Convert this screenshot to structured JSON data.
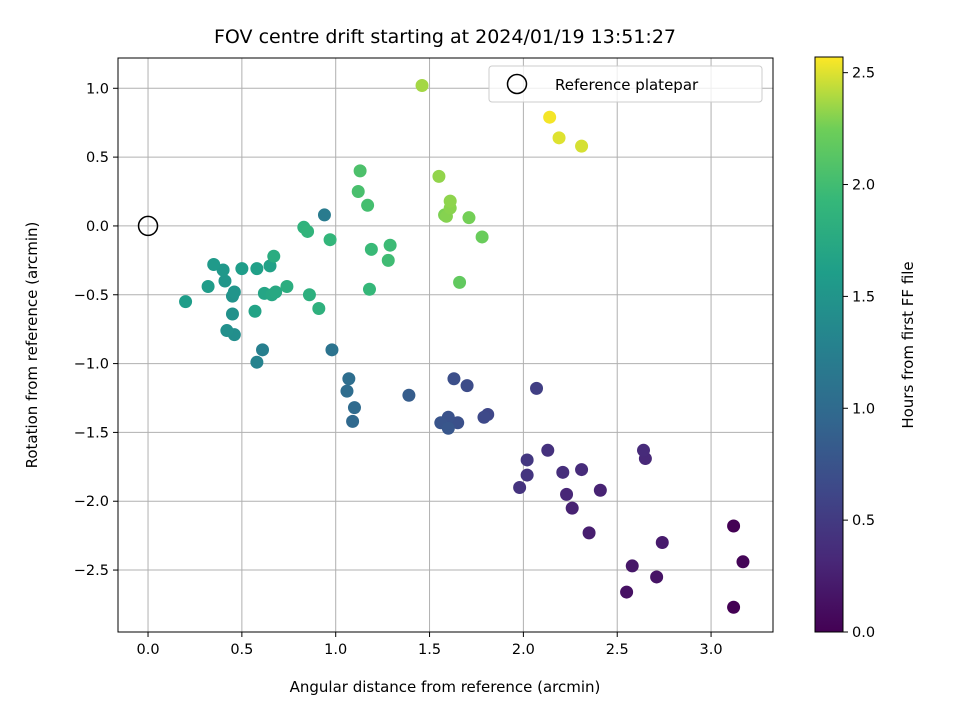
{
  "chart_data": {
    "type": "scatter",
    "title": "FOV centre drift starting at 2024/01/19 13:51:27",
    "xlabel": "Angular distance from reference (arcmin)",
    "ylabel": "Rotation from reference (arcmin)",
    "xlim": [
      -0.16,
      3.33
    ],
    "ylim": [
      -2.95,
      1.22
    ],
    "xticks": [
      "0.0",
      "0.5",
      "1.0",
      "1.5",
      "2.0",
      "2.5",
      "3.0"
    ],
    "xtick_values": [
      0,
      0.5,
      1.0,
      1.5,
      2.0,
      2.5,
      3.0
    ],
    "yticks": [
      "1.0",
      "0.5",
      "0.0",
      "−0.5",
      "−1.0",
      "−1.5",
      "−2.0",
      "−2.5"
    ],
    "ytick_values": [
      1.0,
      0.5,
      0,
      -0.5,
      -1.0,
      -1.5,
      -2.0,
      -2.5
    ],
    "grid": true,
    "legend": {
      "placement": "top-right",
      "label": "Reference platepar"
    },
    "reference_point": {
      "x": 0.0,
      "y": 0.0
    },
    "colorbar": {
      "label": "Hours from first FF file",
      "colormap": "viridis",
      "range": [
        0.0,
        2.57
      ],
      "ticks": [
        "0.0",
        "0.5",
        "1.0",
        "1.5",
        "2.0",
        "2.5"
      ],
      "tick_values": [
        0,
        0.5,
        1.0,
        1.5,
        2.0,
        2.5
      ]
    },
    "points": [
      {
        "x": 3.12,
        "y": -2.18,
        "c": 0.0
      },
      {
        "x": 3.12,
        "y": -2.77,
        "c": 0.0
      },
      {
        "x": 3.17,
        "y": -2.44,
        "c": 0.03
      },
      {
        "x": 2.55,
        "y": -2.66,
        "c": 0.13
      },
      {
        "x": 2.71,
        "y": -2.55,
        "c": 0.15
      },
      {
        "x": 2.58,
        "y": -2.47,
        "c": 0.18
      },
      {
        "x": 2.74,
        "y": -2.3,
        "c": 0.21
      },
      {
        "x": 2.35,
        "y": -2.23,
        "c": 0.24
      },
      {
        "x": 2.26,
        "y": -2.05,
        "c": 0.27
      },
      {
        "x": 2.41,
        "y": -1.92,
        "c": 0.28
      },
      {
        "x": 2.23,
        "y": -1.95,
        "c": 0.31
      },
      {
        "x": 2.65,
        "y": -1.69,
        "c": 0.33
      },
      {
        "x": 2.64,
        "y": -1.63,
        "c": 0.35
      },
      {
        "x": 2.31,
        "y": -1.77,
        "c": 0.36
      },
      {
        "x": 2.21,
        "y": -1.79,
        "c": 0.38
      },
      {
        "x": 2.13,
        "y": -1.63,
        "c": 0.41
      },
      {
        "x": 1.98,
        "y": -1.9,
        "c": 0.43
      },
      {
        "x": 2.02,
        "y": -1.81,
        "c": 0.45
      },
      {
        "x": 2.02,
        "y": -1.7,
        "c": 0.47
      },
      {
        "x": 2.07,
        "y": -1.18,
        "c": 0.55
      },
      {
        "x": 1.81,
        "y": -1.37,
        "c": 0.62
      },
      {
        "x": 1.79,
        "y": -1.39,
        "c": 0.64
      },
      {
        "x": 1.7,
        "y": -1.16,
        "c": 0.67
      },
      {
        "x": 1.63,
        "y": -1.11,
        "c": 0.7
      },
      {
        "x": 1.65,
        "y": -1.43,
        "c": 0.72
      },
      {
        "x": 1.6,
        "y": -1.39,
        "c": 0.74
      },
      {
        "x": 1.56,
        "y": -1.43,
        "c": 0.76
      },
      {
        "x": 1.6,
        "y": -1.47,
        "c": 0.78
      },
      {
        "x": 1.39,
        "y": -1.23,
        "c": 0.85
      },
      {
        "x": 1.09,
        "y": -1.42,
        "c": 0.98
      },
      {
        "x": 1.1,
        "y": -1.32,
        "c": 1.0
      },
      {
        "x": 1.06,
        "y": -1.2,
        "c": 1.02
      },
      {
        "x": 1.07,
        "y": -1.11,
        "c": 1.04
      },
      {
        "x": 0.98,
        "y": -0.9,
        "c": 1.1
      },
      {
        "x": 0.94,
        "y": 0.08,
        "c": 1.2
      },
      {
        "x": 0.61,
        "y": -0.9,
        "c": 1.25
      },
      {
        "x": 0.58,
        "y": -0.99,
        "c": 1.3
      },
      {
        "x": 0.46,
        "y": -0.79,
        "c": 1.42
      },
      {
        "x": 0.42,
        "y": -0.76,
        "c": 1.44
      },
      {
        "x": 0.45,
        "y": -0.64,
        "c": 1.46
      },
      {
        "x": 0.45,
        "y": -0.51,
        "c": 1.48
      },
      {
        "x": 0.46,
        "y": -0.48,
        "c": 1.5
      },
      {
        "x": 0.41,
        "y": -0.4,
        "c": 1.52
      },
      {
        "x": 0.4,
        "y": -0.32,
        "c": 1.54
      },
      {
        "x": 0.35,
        "y": -0.28,
        "c": 1.56
      },
      {
        "x": 0.32,
        "y": -0.44,
        "c": 1.58
      },
      {
        "x": 0.2,
        "y": -0.55,
        "c": 1.6
      },
      {
        "x": 0.5,
        "y": -0.31,
        "c": 1.6
      },
      {
        "x": 0.58,
        "y": -0.31,
        "c": 1.63
      },
      {
        "x": 0.65,
        "y": -0.29,
        "c": 1.65
      },
      {
        "x": 0.57,
        "y": -0.62,
        "c": 1.67
      },
      {
        "x": 0.62,
        "y": -0.49,
        "c": 1.69
      },
      {
        "x": 0.66,
        "y": -0.5,
        "c": 1.72
      },
      {
        "x": 0.68,
        "y": -0.48,
        "c": 1.74
      },
      {
        "x": 0.67,
        "y": -0.22,
        "c": 1.78
      },
      {
        "x": 0.74,
        "y": -0.44,
        "c": 1.8
      },
      {
        "x": 0.86,
        "y": -0.5,
        "c": 1.82
      },
      {
        "x": 0.91,
        "y": -0.6,
        "c": 1.84
      },
      {
        "x": 0.83,
        "y": -0.01,
        "c": 1.86
      },
      {
        "x": 0.85,
        "y": -0.04,
        "c": 1.88
      },
      {
        "x": 0.97,
        "y": -0.1,
        "c": 1.9
      },
      {
        "x": 1.18,
        "y": -0.46,
        "c": 1.93
      },
      {
        "x": 1.19,
        "y": -0.17,
        "c": 1.95
      },
      {
        "x": 1.29,
        "y": -0.14,
        "c": 1.97
      },
      {
        "x": 1.28,
        "y": -0.25,
        "c": 1.99
      },
      {
        "x": 1.17,
        "y": 0.15,
        "c": 2.02
      },
      {
        "x": 1.12,
        "y": 0.25,
        "c": 2.04
      },
      {
        "x": 1.13,
        "y": 0.4,
        "c": 2.06
      },
      {
        "x": 1.66,
        "y": -0.41,
        "c": 2.18
      },
      {
        "x": 1.78,
        "y": -0.08,
        "c": 2.22
      },
      {
        "x": 1.71,
        "y": 0.06,
        "c": 2.26
      },
      {
        "x": 1.58,
        "y": 0.08,
        "c": 2.28
      },
      {
        "x": 1.59,
        "y": 0.07,
        "c": 2.3
      },
      {
        "x": 1.61,
        "y": 0.13,
        "c": 2.31
      },
      {
        "x": 1.61,
        "y": 0.18,
        "c": 2.32
      },
      {
        "x": 1.55,
        "y": 0.36,
        "c": 2.33
      },
      {
        "x": 1.46,
        "y": 1.02,
        "c": 2.37
      },
      {
        "x": 2.31,
        "y": 0.58,
        "c": 2.48
      },
      {
        "x": 2.19,
        "y": 0.64,
        "c": 2.5
      },
      {
        "x": 2.14,
        "y": 0.79,
        "c": 2.55
      }
    ]
  }
}
